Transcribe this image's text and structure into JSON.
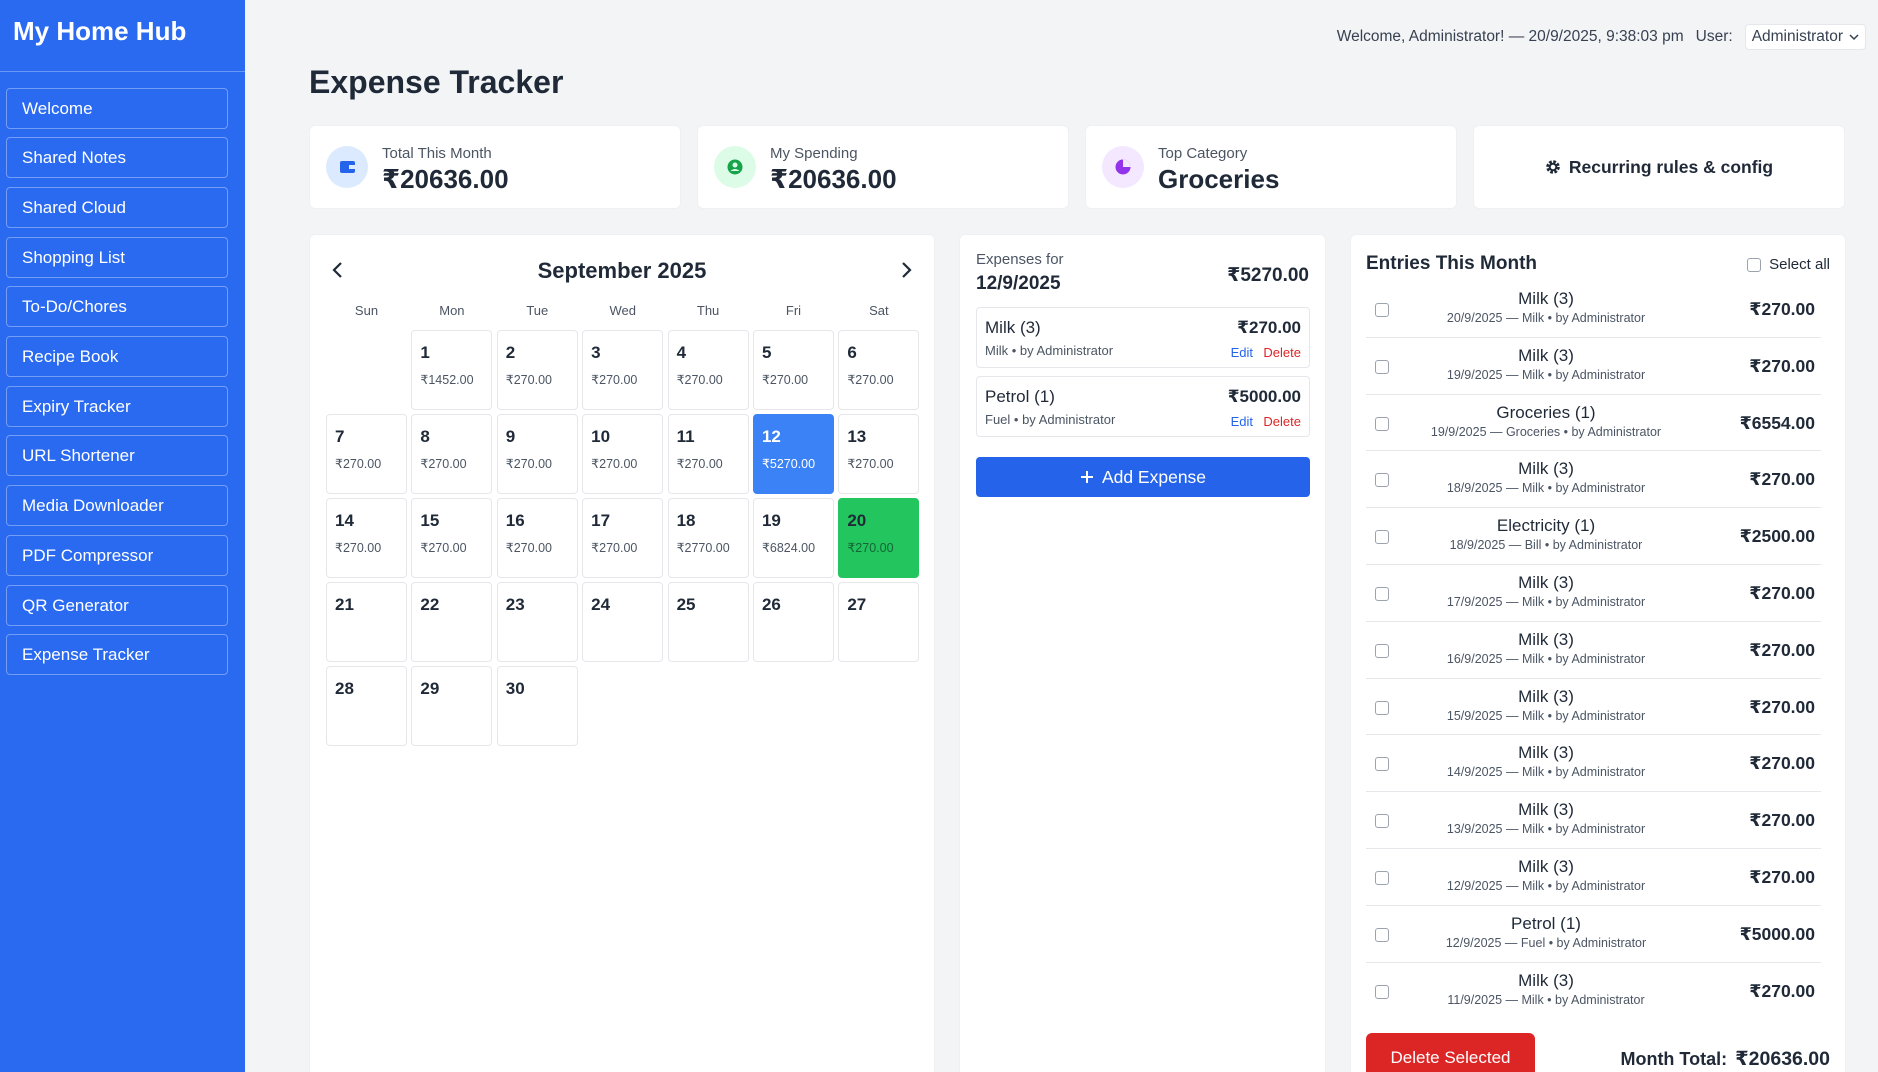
{
  "sidebar": {
    "title": "My Home Hub",
    "nav": [
      "Welcome",
      "Shared Notes",
      "Shared Cloud",
      "Shopping List",
      "To-Do/Chores",
      "Recipe Book",
      "Expiry Tracker",
      "URL Shortener",
      "Media Downloader",
      "PDF Compressor",
      "QR Generator",
      "Expense Tracker"
    ]
  },
  "header": {
    "welcome": "Welcome, Administrator! — 20/9/2025, 9:38:03 pm",
    "user_label": "User:",
    "user_select": "Administrator"
  },
  "page_title": "Expense Tracker",
  "stats": [
    {
      "label": "Total This Month",
      "value": "₹20636.00"
    },
    {
      "label": "My Spending",
      "value": "₹20636.00"
    },
    {
      "label": "Top Category",
      "value": "Groceries"
    }
  ],
  "recurring_button": "Recurring rules & config",
  "calendar": {
    "month": "September 2025",
    "weekdays": [
      "Sun",
      "Mon",
      "Tue",
      "Wed",
      "Thu",
      "Fri",
      "Sat"
    ],
    "days": [
      {
        "day": 1,
        "amount": "₹1452.00"
      },
      {
        "day": 2,
        "amount": "₹270.00"
      },
      {
        "day": 3,
        "amount": "₹270.00"
      },
      {
        "day": 4,
        "amount": "₹270.00"
      },
      {
        "day": 5,
        "amount": "₹270.00"
      },
      {
        "day": 6,
        "amount": "₹270.00"
      },
      {
        "day": 7,
        "amount": "₹270.00"
      },
      {
        "day": 8,
        "amount": "₹270.00"
      },
      {
        "day": 9,
        "amount": "₹270.00"
      },
      {
        "day": 10,
        "amount": "₹270.00"
      },
      {
        "day": 11,
        "amount": "₹270.00"
      },
      {
        "day": 12,
        "amount": "₹5270.00",
        "state": "selected"
      },
      {
        "day": 13,
        "amount": "₹270.00"
      },
      {
        "day": 14,
        "amount": "₹270.00"
      },
      {
        "day": 15,
        "amount": "₹270.00"
      },
      {
        "day": 16,
        "amount": "₹270.00"
      },
      {
        "day": 17,
        "amount": "₹270.00"
      },
      {
        "day": 18,
        "amount": "₹2770.00"
      },
      {
        "day": 19,
        "amount": "₹6824.00"
      },
      {
        "day": 20,
        "amount": "₹270.00",
        "state": "today"
      },
      {
        "day": 21
      },
      {
        "day": 22
      },
      {
        "day": 23
      },
      {
        "day": 24
      },
      {
        "day": 25
      },
      {
        "day": 26
      },
      {
        "day": 27
      },
      {
        "day": 28
      },
      {
        "day": 29
      },
      {
        "day": 30
      }
    ]
  },
  "day_panel": {
    "label": "Expenses for",
    "date": "12/9/2025",
    "total": "₹5270.00",
    "items": [
      {
        "name": "Milk (3)",
        "meta": "Milk • by Administrator",
        "amount": "₹270.00"
      },
      {
        "name": "Petrol (1)",
        "meta": "Fuel • by Administrator",
        "amount": "₹5000.00"
      }
    ],
    "edit": "Edit",
    "delete": "Delete",
    "add_button": "Add Expense"
  },
  "entries": {
    "title": "Entries This Month",
    "select_all": "Select all",
    "rows": [
      {
        "name": "Milk (3)",
        "meta": "20/9/2025 — Milk • by Administrator",
        "amount": "₹270.00"
      },
      {
        "name": "Milk (3)",
        "meta": "19/9/2025 — Milk • by Administrator",
        "amount": "₹270.00"
      },
      {
        "name": "Groceries (1)",
        "meta": "19/9/2025 — Groceries • by Administrator",
        "amount": "₹6554.00"
      },
      {
        "name": "Milk (3)",
        "meta": "18/9/2025 — Milk • by Administrator",
        "amount": "₹270.00"
      },
      {
        "name": "Electricity (1)",
        "meta": "18/9/2025 — Bill • by Administrator",
        "amount": "₹2500.00"
      },
      {
        "name": "Milk (3)",
        "meta": "17/9/2025 — Milk • by Administrator",
        "amount": "₹270.00"
      },
      {
        "name": "Milk (3)",
        "meta": "16/9/2025 — Milk • by Administrator",
        "amount": "₹270.00"
      },
      {
        "name": "Milk (3)",
        "meta": "15/9/2025 — Milk • by Administrator",
        "amount": "₹270.00"
      },
      {
        "name": "Milk (3)",
        "meta": "14/9/2025 — Milk • by Administrator",
        "amount": "₹270.00"
      },
      {
        "name": "Milk (3)",
        "meta": "13/9/2025 — Milk • by Administrator",
        "amount": "₹270.00"
      },
      {
        "name": "Milk (3)",
        "meta": "12/9/2025 — Milk • by Administrator",
        "amount": "₹270.00"
      },
      {
        "name": "Petrol (1)",
        "meta": "12/9/2025 — Fuel • by Administrator",
        "amount": "₹5000.00"
      },
      {
        "name": "Milk (3)",
        "meta": "11/9/2025 — Milk • by Administrator",
        "amount": "₹270.00"
      }
    ],
    "delete_button": "Delete Selected",
    "total_label": "Month Total:",
    "total": "₹20636.00"
  }
}
